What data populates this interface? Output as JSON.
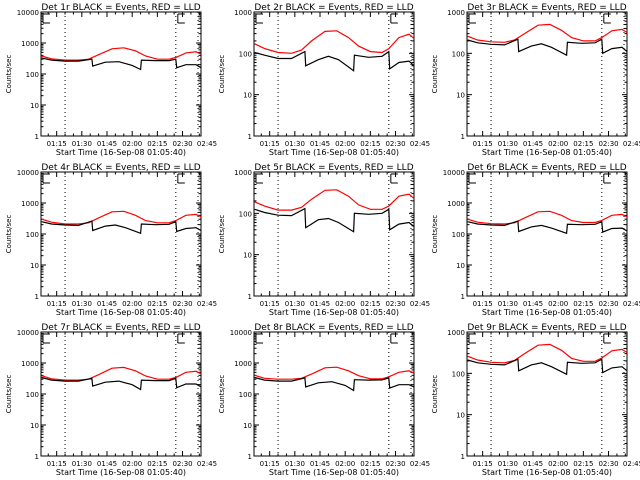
{
  "chart_data": [
    {
      "type": "line",
      "title": "Det 1r BLACK = Events, RED = LLD",
      "xlabel": "Start Time (16-Sep-08 01:05:40)",
      "ylabel": "Counts/sec",
      "yscale": "log",
      "ylim": [
        1,
        10000
      ],
      "ytick_labels": [
        "1",
        "10",
        "100",
        "1000",
        "10000"
      ],
      "x_range_min": [
        5.67,
        101
      ],
      "xtick_labels": [
        "01:15",
        "01:30",
        "01:45",
        "02:00",
        "02:15",
        "02:30",
        "02:45"
      ],
      "xtick_min": [
        15,
        30,
        45,
        60,
        75,
        90,
        105
      ],
      "vlines_min": [
        20,
        86,
        103
      ],
      "series": [
        {
          "name": "LLD",
          "color": "#ff0000",
          "x_min": [
            6,
            12,
            20,
            28,
            34,
            40,
            48,
            55,
            62,
            68,
            75,
            82,
            86,
            92,
            98,
            101
          ],
          "values": [
            380,
            310,
            280,
            280,
            300,
            420,
            650,
            700,
            560,
            380,
            300,
            300,
            340,
            480,
            520,
            440
          ]
        },
        {
          "name": "Events",
          "color": "#000000",
          "x_min": [
            6,
            12,
            20,
            28,
            36,
            36.5,
            44,
            52,
            60,
            65,
            65.5,
            74,
            82,
            86,
            86.5,
            92,
            98,
            101
          ],
          "values": [
            330,
            280,
            260,
            260,
            300,
            180,
            240,
            250,
            190,
            140,
            280,
            270,
            270,
            300,
            160,
            200,
            200,
            160
          ]
        }
      ]
    },
    {
      "type": "line",
      "title": "Det 2r BLACK = Events, RED = LLD",
      "xlabel": "Start Time (16-Sep-08 01:05:40)",
      "ylabel": "Counts/sec",
      "yscale": "log",
      "ylim": [
        1,
        1000
      ],
      "ytick_labels": [
        "1",
        "10",
        "100",
        "1000"
      ],
      "x_range_min": [
        5.67,
        101
      ],
      "xtick_labels": [
        "01:15",
        "01:30",
        "01:45",
        "02:00",
        "02:15",
        "02:30",
        "02:45"
      ],
      "xtick_min": [
        15,
        30,
        45,
        60,
        75,
        90,
        105
      ],
      "vlines_min": [
        20,
        86,
        103
      ],
      "series": [
        {
          "name": "LLD",
          "color": "#ff0000",
          "x_min": [
            6,
            12,
            20,
            28,
            34,
            40,
            48,
            55,
            62,
            68,
            75,
            82,
            86,
            92,
            98,
            101
          ],
          "values": [
            170,
            130,
            105,
            100,
            120,
            200,
            340,
            350,
            240,
            150,
            110,
            105,
            130,
            240,
            290,
            230
          ]
        },
        {
          "name": "Events",
          "color": "#000000",
          "x_min": [
            6,
            12,
            20,
            28,
            36,
            36.5,
            44,
            50,
            56,
            65,
            65.5,
            74,
            82,
            86,
            86.5,
            92,
            98,
            101
          ],
          "values": [
            105,
            90,
            75,
            75,
            110,
            50,
            70,
            85,
            70,
            38,
            90,
            80,
            85,
            110,
            42,
            60,
            65,
            50
          ]
        }
      ]
    },
    {
      "type": "line",
      "title": "Det 3r BLACK = Events, RED = LLD",
      "xlabel": "Start Time (16-Sep-08 01:05:40)",
      "ylabel": "Counts/sec",
      "yscale": "log",
      "ylim": [
        1,
        1000
      ],
      "ytick_labels": [
        "1",
        "10",
        "100",
        "1000"
      ],
      "x_range_min": [
        5.67,
        101
      ],
      "xtick_labels": [
        "01:15",
        "01:30",
        "01:45",
        "02:00",
        "02:15",
        "02:30",
        "02:45"
      ],
      "xtick_min": [
        15,
        30,
        45,
        60,
        75,
        90,
        105
      ],
      "vlines_min": [
        20,
        86,
        103
      ],
      "series": [
        {
          "name": "LLD",
          "color": "#ff0000",
          "x_min": [
            6,
            12,
            20,
            28,
            34,
            40,
            48,
            55,
            62,
            68,
            75,
            82,
            86,
            92,
            98,
            101
          ],
          "values": [
            260,
            210,
            190,
            185,
            210,
            300,
            480,
            500,
            360,
            240,
            200,
            200,
            240,
            350,
            380,
            320
          ]
        },
        {
          "name": "Events",
          "color": "#000000",
          "x_min": [
            6,
            12,
            20,
            28,
            36,
            36.5,
            44,
            50,
            56,
            65,
            65.5,
            74,
            82,
            86,
            86.5,
            92,
            98,
            101
          ],
          "values": [
            210,
            180,
            165,
            160,
            220,
            110,
            150,
            170,
            140,
            90,
            185,
            175,
            180,
            220,
            100,
            130,
            140,
            110
          ]
        }
      ]
    },
    {
      "type": "line",
      "title": "Det 4r BLACK = Events, RED = LLD",
      "xlabel": "Start Time (16-Sep-08 01:05:40)",
      "ylabel": "Counts/sec",
      "yscale": "log",
      "ylim": [
        1,
        10000
      ],
      "ytick_labels": [
        "1",
        "10",
        "100",
        "1000",
        "10000"
      ],
      "x_range_min": [
        5.67,
        101
      ],
      "xtick_labels": [
        "01:15",
        "01:30",
        "01:45",
        "02:00",
        "02:15",
        "02:30",
        "02:45"
      ],
      "xtick_min": [
        15,
        30,
        45,
        60,
        75,
        90,
        105
      ],
      "vlines_min": [
        20,
        86,
        103
      ],
      "series": [
        {
          "name": "LLD",
          "color": "#ff0000",
          "x_min": [
            6,
            12,
            20,
            28,
            34,
            40,
            48,
            55,
            62,
            68,
            75,
            82,
            86,
            92,
            98,
            101
          ],
          "values": [
            300,
            240,
            210,
            210,
            230,
            330,
            520,
            540,
            400,
            270,
            230,
            230,
            270,
            400,
            430,
            360
          ]
        },
        {
          "name": "Events",
          "color": "#000000",
          "x_min": [
            6,
            12,
            20,
            28,
            36,
            36.5,
            44,
            50,
            56,
            65,
            65.5,
            74,
            82,
            86,
            86.5,
            92,
            98,
            101
          ],
          "values": [
            250,
            210,
            195,
            190,
            260,
            130,
            180,
            195,
            160,
            105,
            210,
            200,
            205,
            250,
            120,
            150,
            160,
            130
          ]
        }
      ]
    },
    {
      "type": "line",
      "title": "Det 5r BLACK = Events, RED = LLD",
      "xlabel": "Start Time (16-Sep-08 01:05:40)",
      "ylabel": "Counts/sec",
      "yscale": "log",
      "ylim": [
        1,
        1000
      ],
      "ytick_labels": [
        "1",
        "10",
        "100",
        "1000"
      ],
      "x_range_min": [
        5.67,
        101
      ],
      "xtick_labels": [
        "01:15",
        "01:30",
        "01:45",
        "02:00",
        "02:15",
        "02:30",
        "02:45"
      ],
      "xtick_min": [
        15,
        30,
        45,
        60,
        75,
        90,
        105
      ],
      "vlines_min": [
        20,
        86,
        103
      ],
      "series": [
        {
          "name": "LLD",
          "color": "#ff0000",
          "x_min": [
            6,
            12,
            20,
            28,
            34,
            40,
            48,
            55,
            62,
            68,
            75,
            82,
            86,
            92,
            98,
            101
          ],
          "values": [
            190,
            150,
            120,
            120,
            140,
            220,
            360,
            370,
            260,
            160,
            125,
            125,
            150,
            260,
            290,
            230
          ]
        },
        {
          "name": "Events",
          "color": "#000000",
          "x_min": [
            6,
            12,
            20,
            28,
            36,
            36.5,
            44,
            50,
            56,
            65,
            65.5,
            74,
            82,
            86,
            86.5,
            92,
            98,
            101
          ],
          "values": [
            125,
            105,
            90,
            88,
            130,
            45,
            70,
            75,
            60,
            36,
            100,
            95,
            100,
            125,
            40,
            55,
            60,
            48
          ]
        }
      ]
    },
    {
      "type": "line",
      "title": "Det 6r BLACK = Events, RED = LLD",
      "xlabel": "Start Time (16-Sep-08 01:05:40)",
      "ylabel": "Counts/sec",
      "yscale": "log",
      "ylim": [
        1,
        10000
      ],
      "ytick_labels": [
        "1",
        "10",
        "100",
        "1000",
        "10000"
      ],
      "x_range_min": [
        5.67,
        101
      ],
      "xtick_labels": [
        "01:15",
        "01:30",
        "01:45",
        "02:00",
        "02:15",
        "02:30",
        "02:45"
      ],
      "xtick_min": [
        15,
        30,
        45,
        60,
        75,
        90,
        105
      ],
      "vlines_min": [
        20,
        86,
        103
      ],
      "series": [
        {
          "name": "LLD",
          "color": "#ff0000",
          "x_min": [
            6,
            12,
            20,
            28,
            34,
            40,
            48,
            55,
            62,
            68,
            75,
            82,
            86,
            92,
            98,
            101
          ],
          "values": [
            300,
            240,
            215,
            210,
            230,
            330,
            520,
            540,
            400,
            270,
            235,
            235,
            275,
            400,
            430,
            360
          ]
        },
        {
          "name": "Events",
          "color": "#000000",
          "x_min": [
            6,
            12,
            20,
            28,
            36,
            36.5,
            44,
            50,
            56,
            65,
            65.5,
            74,
            82,
            86,
            86.5,
            92,
            98,
            101
          ],
          "values": [
            250,
            210,
            195,
            190,
            260,
            120,
            170,
            190,
            155,
            105,
            205,
            200,
            205,
            250,
            115,
            150,
            155,
            125
          ]
        }
      ]
    },
    {
      "type": "line",
      "title": "Det 7r BLACK = Events, RED = LLD",
      "xlabel": "Start Time (16-Sep-08 01:05:40)",
      "ylabel": "Counts/sec",
      "yscale": "log",
      "ylim": [
        1,
        10000
      ],
      "ytick_labels": [
        "1",
        "10",
        "100",
        "1000",
        "10000"
      ],
      "x_range_min": [
        5.67,
        101
      ],
      "xtick_labels": [
        "01:15",
        "01:30",
        "01:45",
        "02:00",
        "02:15",
        "02:30",
        "02:45"
      ],
      "xtick_min": [
        15,
        30,
        45,
        60,
        75,
        90,
        105
      ],
      "vlines_min": [
        20,
        86,
        103
      ],
      "series": [
        {
          "name": "LLD",
          "color": "#ff0000",
          "x_min": [
            6,
            12,
            20,
            28,
            34,
            40,
            48,
            55,
            62,
            68,
            75,
            82,
            86,
            92,
            98,
            101
          ],
          "values": [
            390,
            310,
            280,
            280,
            300,
            420,
            680,
            720,
            560,
            380,
            300,
            300,
            340,
            500,
            540,
            450
          ]
        },
        {
          "name": "Events",
          "color": "#000000",
          "x_min": [
            6,
            12,
            20,
            28,
            36,
            36.5,
            44,
            52,
            60,
            65,
            65.5,
            74,
            82,
            86,
            86.5,
            92,
            98,
            101
          ],
          "values": [
            340,
            280,
            260,
            260,
            320,
            180,
            240,
            260,
            200,
            140,
            280,
            270,
            270,
            320,
            160,
            210,
            210,
            170
          ]
        }
      ]
    },
    {
      "type": "line",
      "title": "Det 8r BLACK = Events, RED = LLD",
      "xlabel": "Start Time (16-Sep-08 01:05:40)",
      "ylabel": "Counts/sec",
      "yscale": "log",
      "ylim": [
        1,
        10000
      ],
      "ytick_labels": [
        "1",
        "10",
        "100",
        "1000",
        "10000"
      ],
      "x_range_min": [
        5.67,
        101
      ],
      "xtick_labels": [
        "01:15",
        "01:30",
        "01:45",
        "02:00",
        "02:15",
        "02:30",
        "02:45"
      ],
      "xtick_min": [
        15,
        30,
        45,
        60,
        75,
        90,
        105
      ],
      "vlines_min": [
        20,
        86,
        103
      ],
      "series": [
        {
          "name": "LLD",
          "color": "#ff0000",
          "x_min": [
            6,
            12,
            20,
            28,
            34,
            40,
            48,
            55,
            62,
            68,
            75,
            82,
            86,
            92,
            98,
            101
          ],
          "values": [
            400,
            320,
            300,
            300,
            320,
            440,
            700,
            730,
            560,
            390,
            310,
            310,
            360,
            500,
            560,
            470
          ]
        },
        {
          "name": "Events",
          "color": "#000000",
          "x_min": [
            6,
            12,
            20,
            28,
            36,
            36.5,
            44,
            52,
            60,
            65,
            65.5,
            74,
            82,
            86,
            86.5,
            92,
            98,
            101
          ],
          "values": [
            340,
            280,
            260,
            260,
            330,
            170,
            230,
            250,
            190,
            130,
            290,
            280,
            285,
            330,
            155,
            200,
            200,
            170
          ]
        }
      ]
    },
    {
      "type": "line",
      "title": "Det 9r BLACK = Events, RED = LLD",
      "xlabel": "Start Time (16-Sep-08 01:05:40)",
      "ylabel": "Counts/sec",
      "yscale": "log",
      "ylim": [
        1,
        1000
      ],
      "ytick_labels": [
        "1",
        "10",
        "100",
        "1000"
      ],
      "x_range_min": [
        5.67,
        101
      ],
      "xtick_labels": [
        "01:15",
        "01:30",
        "01:45",
        "02:00",
        "02:15",
        "02:30",
        "02:45"
      ],
      "xtick_min": [
        15,
        30,
        45,
        60,
        75,
        90,
        105
      ],
      "vlines_min": [
        20,
        86,
        103
      ],
      "series": [
        {
          "name": "LLD",
          "color": "#ff0000",
          "x_min": [
            6,
            12,
            20,
            28,
            34,
            40,
            48,
            55,
            62,
            68,
            75,
            82,
            86,
            92,
            98,
            101
          ],
          "values": [
            260,
            210,
            185,
            180,
            205,
            300,
            480,
            500,
            360,
            230,
            195,
            195,
            235,
            350,
            380,
            320
          ]
        },
        {
          "name": "Events",
          "color": "#000000",
          "x_min": [
            6,
            12,
            20,
            28,
            36,
            36.5,
            44,
            50,
            56,
            65,
            65.5,
            74,
            82,
            86,
            86.5,
            92,
            98,
            101
          ],
          "values": [
            210,
            180,
            165,
            160,
            220,
            115,
            160,
            180,
            145,
            95,
            185,
            175,
            180,
            220,
            105,
            135,
            145,
            115
          ]
        }
      ]
    }
  ]
}
